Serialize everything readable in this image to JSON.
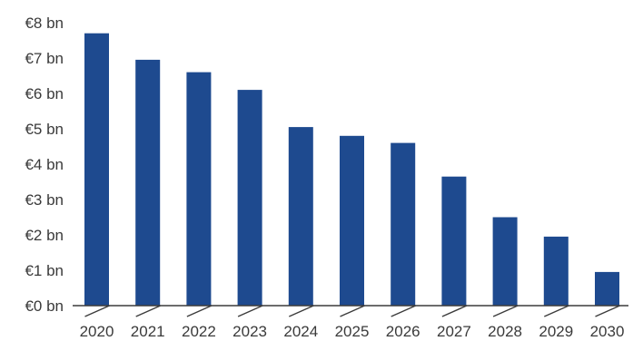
{
  "chart_data": {
    "type": "bar",
    "title": "",
    "xlabel": "",
    "ylabel": "",
    "categories": [
      "2020",
      "2021",
      "2022",
      "2023",
      "2024",
      "2025",
      "2026",
      "2027",
      "2028",
      "2029",
      "2030"
    ],
    "values": [
      7.7,
      6.95,
      6.6,
      6.1,
      5.05,
      4.8,
      4.6,
      3.65,
      2.5,
      1.95,
      0.95
    ],
    "ylim": [
      0,
      8
    ],
    "yticks": [
      0,
      1,
      2,
      3,
      4,
      5,
      6,
      7,
      8
    ],
    "ytick_labels": [
      "€0 bn",
      "€1 bn",
      "€2 bn",
      "€3 bn",
      "€4 bn",
      "€5 bn",
      "€6 bn",
      "€7 bn",
      "€8 bn"
    ],
    "grid": false,
    "legend": "none",
    "bar_color": "#1e4a8f"
  }
}
